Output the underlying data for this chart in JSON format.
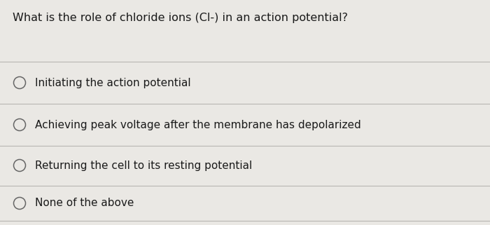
{
  "background_color": "#dcdad6",
  "card_color": "#eae8e4",
  "question": "What is the role of chloride ions (Cl-) in an action potential?",
  "options": [
    "Initiating the action potential",
    "Achieving peak voltage after the membrane has depolarized",
    "Returning the cell to its resting potential",
    "None of the above"
  ],
  "question_fontsize": 11.5,
  "option_fontsize": 11.0,
  "text_color": "#1a1a1a",
  "line_color": "#b8b6b2",
  "circle_color": "#666666",
  "fig_width": 7.0,
  "fig_height": 3.21,
  "dpi": 100
}
